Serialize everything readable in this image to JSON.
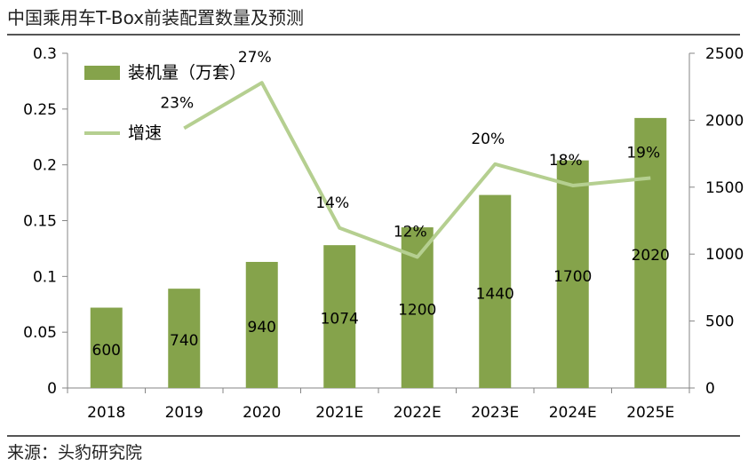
{
  "title": "中国乘用车T-Box前装配置数量及预测",
  "source": "来源：头豹研究院",
  "chart_data": {
    "type": "bar",
    "categories": [
      "2018",
      "2019",
      "2020",
      "2021E",
      "2022E",
      "2023E",
      "2024E",
      "2025E"
    ],
    "series": [
      {
        "name": "装机量（万套）",
        "axis": "left",
        "values": [
          0.072,
          0.089,
          0.113,
          0.128,
          0.144,
          0.173,
          0.204,
          0.242
        ],
        "data_labels": [
          "600",
          "740",
          "940",
          "1074",
          "1200",
          "1440",
          "1700",
          "2020"
        ],
        "color": "#85a34b"
      },
      {
        "name": "增速",
        "axis": "right",
        "type": "line",
        "values": [
          null,
          1940,
          2280,
          1195,
          978,
          1672,
          1512,
          1568
        ],
        "data_labels": [
          "",
          "23%",
          "27%",
          "14%",
          "12%",
          "20%",
          "18%",
          "19%"
        ],
        "color": "#b5cf90"
      }
    ],
    "y_left": {
      "ylim": [
        0,
        0.3
      ],
      "ticks": [
        "0",
        "0.05",
        "0.1",
        "0.15",
        "0.2",
        "0.25",
        "0.3"
      ]
    },
    "y_right": {
      "ylim": [
        0,
        2500
      ],
      "ticks": [
        "0",
        "500",
        "1000",
        "1500",
        "2000",
        "2500"
      ]
    },
    "legend": "top-left",
    "grid": false
  }
}
